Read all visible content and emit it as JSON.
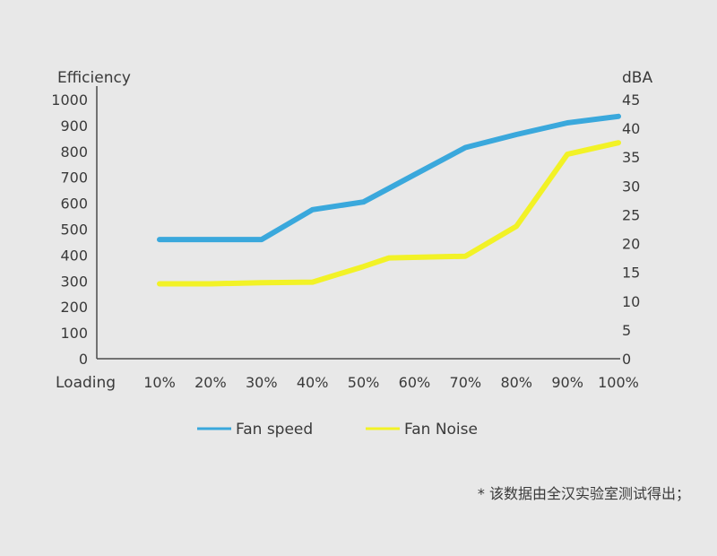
{
  "chart_data": {
    "type": "line",
    "title": "",
    "xlabel": "Loading",
    "ylabel_left": "Efficiency",
    "ylabel_right": "dBA",
    "categories": [
      "10%",
      "20%",
      "30%",
      "40%",
      "50%",
      "60%",
      "70%",
      "80%",
      "90%",
      "100%"
    ],
    "y_left_ticks": [
      "0",
      "100",
      "200",
      "300",
      "400",
      "500",
      "600",
      "700",
      "800",
      "900",
      "1000"
    ],
    "y_right_ticks": [
      "0",
      "5",
      "10",
      "15",
      "20",
      "25",
      "30",
      "35",
      "40",
      "45"
    ],
    "ylim_left": [
      0,
      1000
    ],
    "ylim_right": [
      0,
      45
    ],
    "grid": false,
    "legend_position": "bottom",
    "series": [
      {
        "name": "Fan speed",
        "axis": "left",
        "color": "#3aa8dc",
        "points": [
          [
            10,
            460
          ],
          [
            20,
            460
          ],
          [
            30,
            460
          ],
          [
            40,
            575
          ],
          [
            50,
            605
          ],
          [
            60,
            710
          ],
          [
            70,
            815
          ],
          [
            80,
            865
          ],
          [
            90,
            910
          ],
          [
            100,
            935
          ]
        ]
      },
      {
        "name": "Fan Noise",
        "axis": "right",
        "color": "#f2f226",
        "points": [
          [
            10,
            13
          ],
          [
            20,
            13
          ],
          [
            30,
            13.2
          ],
          [
            40,
            13.3
          ],
          [
            50,
            16
          ],
          [
            55,
            17.5
          ],
          [
            70,
            17.8
          ],
          [
            80,
            23
          ],
          [
            90,
            35.5
          ],
          [
            100,
            37.5
          ]
        ]
      }
    ]
  },
  "footnote": "* 该数据由全汉实验室测试得出；"
}
